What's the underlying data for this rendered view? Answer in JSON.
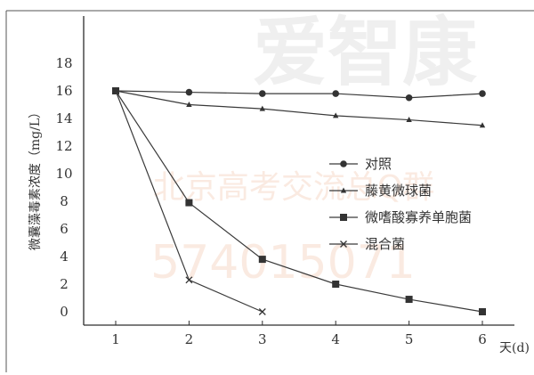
{
  "watermark": {
    "logo_text": "爱智康",
    "group_text": "北京高考交流总Q群",
    "number_text": "574015071",
    "color": "#e9a27a"
  },
  "chart_data": {
    "type": "line",
    "xlabel": "天(d)",
    "ylabel": "微囊藻毒素浓度（mg/L）",
    "x": [
      1,
      2,
      3,
      4,
      5,
      6
    ],
    "xlim": [
      1,
      6
    ],
    "ylim": [
      0,
      18
    ],
    "y_ticks": [
      0,
      2,
      4,
      6,
      8,
      10,
      12,
      14,
      16,
      18
    ],
    "legend_position": "right",
    "series": [
      {
        "name": "对照",
        "marker": "circle",
        "x": [
          1,
          2,
          3,
          4,
          5,
          6
        ],
        "values": [
          16,
          15.9,
          15.8,
          15.8,
          15.5,
          15.8
        ]
      },
      {
        "name": "藤黄微球菌",
        "marker": "triangle",
        "x": [
          1,
          2,
          3,
          4,
          5,
          6
        ],
        "values": [
          16,
          15.0,
          14.7,
          14.2,
          13.9,
          13.5
        ]
      },
      {
        "name": "微嗜酸寡养单胞菌",
        "marker": "square",
        "x": [
          1,
          2,
          3,
          4,
          5,
          6
        ],
        "values": [
          16,
          7.9,
          3.8,
          2.0,
          0.9,
          0
        ]
      },
      {
        "name": "混合菌",
        "marker": "cross",
        "x": [
          1,
          2,
          3
        ],
        "values": [
          16,
          2.3,
          0
        ]
      }
    ]
  }
}
